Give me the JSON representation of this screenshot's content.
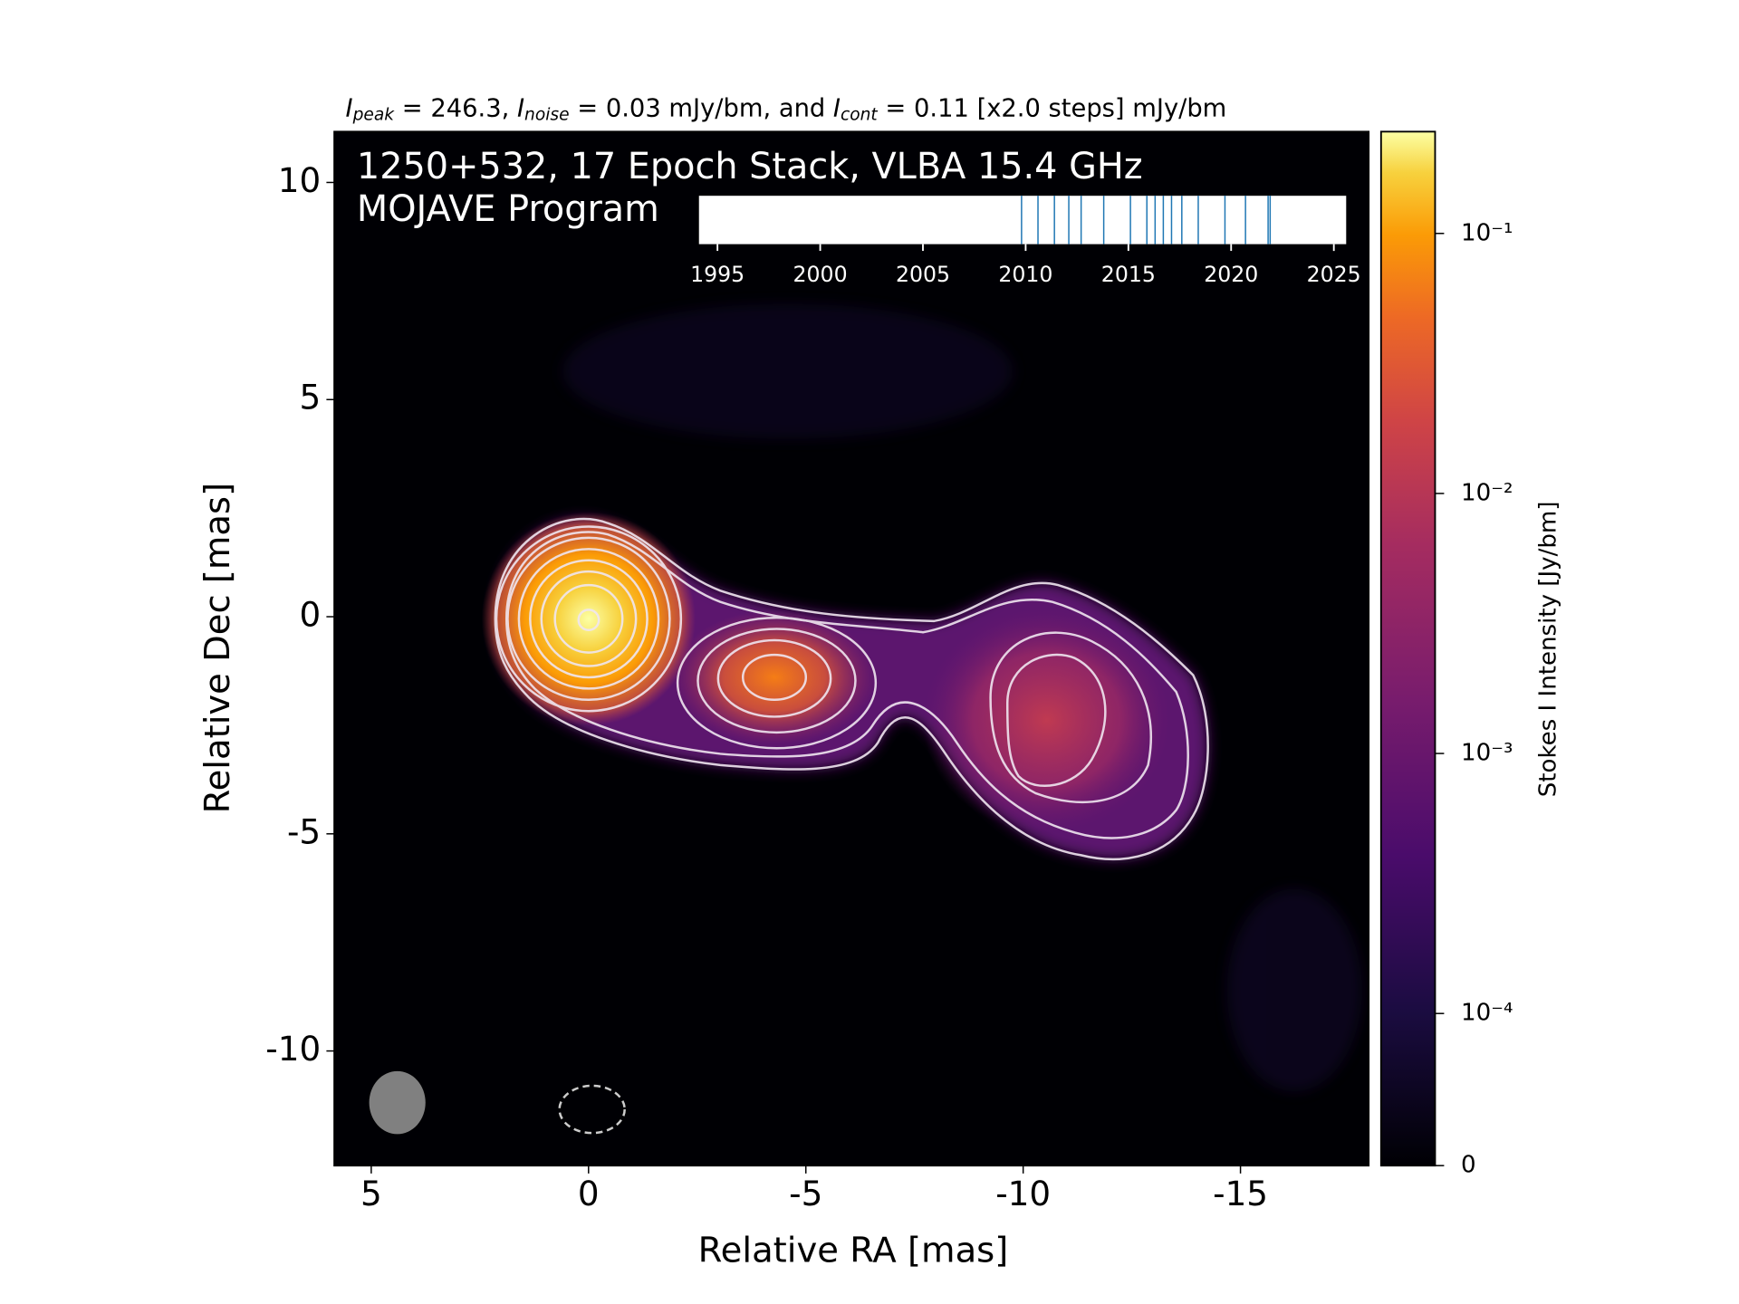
{
  "chart_data": {
    "type": "image",
    "header": [
      {
        "text": "I",
        "sub": "peak"
      },
      {
        "text": " = 246.3, "
      },
      {
        "text": "I",
        "sub": "noise"
      },
      {
        "text": " = 0.03 mJy/bm, and "
      },
      {
        "text": "I",
        "sub": "cont"
      },
      {
        "text": " = 0.11 [x2.0 steps] mJy/bm"
      }
    ],
    "title": "1250+532, 17 Epoch Stack, VLBA 15.4 GHz",
    "subtitle": "MOJAVE Program",
    "xlabel": "Relative RA [mas]",
    "ylabel": "Relative Dec [mas]",
    "xlim": [
      5.85,
      -17.95
    ],
    "ylim": [
      -12.64,
      11.17
    ],
    "xticks": [
      5,
      0,
      -5,
      -10,
      -15
    ],
    "yticks": [
      10,
      5,
      0,
      -5,
      -10
    ],
    "colorbar": {
      "label": "Stokes I Intensity [Jy/bm]",
      "scale": "symlog",
      "linthresh": 0.0001,
      "linscale": 0.585,
      "lim": [
        0,
        0.2463
      ],
      "ticks": [
        0,
        {
          "value": 0.0001,
          "label": "10⁻⁴"
        },
        {
          "value": 0.001,
          "label": "10⁻³"
        },
        {
          "value": 0.01,
          "label": "10⁻²"
        },
        {
          "value": 0.1,
          "label": "10⁻¹"
        }
      ]
    },
    "timeline": {
      "xlim": [
        1994.1,
        2025.6
      ],
      "xticks": [
        1995,
        2000,
        2005,
        2010,
        2015,
        2020,
        2025
      ],
      "color": "#1f77b4",
      "epochs": [
        2009.8,
        2010.6,
        2011.4,
        2012.1,
        2012.7,
        2013.8,
        2015.1,
        2015.9,
        2016.3,
        2016.7,
        2017.1,
        2017.6,
        2018.4,
        2019.7,
        2020.7,
        2021.8,
        2021.9
      ]
    }
  }
}
